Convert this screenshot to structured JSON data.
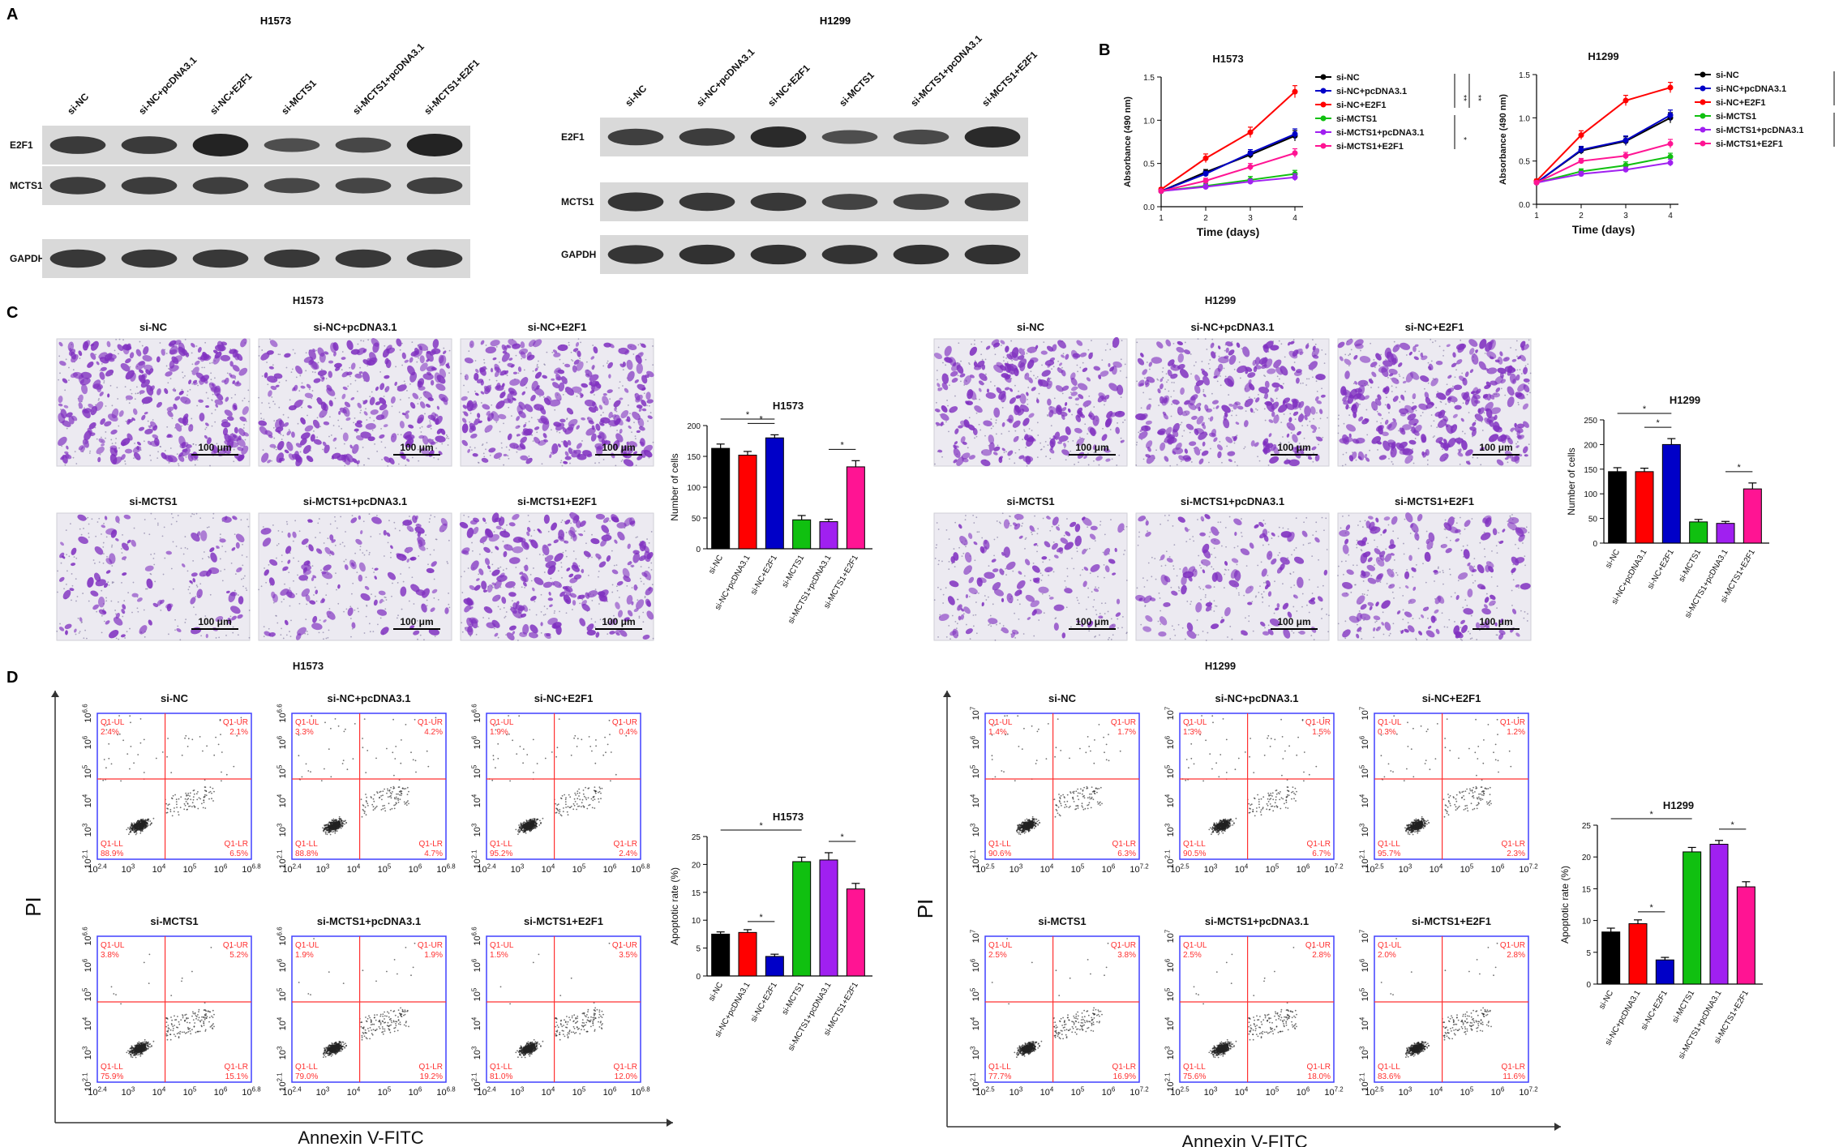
{
  "panels": {
    "A": {
      "letter": "A",
      "blots": [
        {
          "cell": "H1573",
          "lanes": [
            "si-NC",
            "si-NC+pcDNA3.1",
            "si-NC+E2F1",
            "si-MCTS1",
            "si-MCTS1+pcDNA3.1",
            "si-MCTS1+E2F1"
          ],
          "proteins": [
            "E2F1",
            "MCTS1",
            "GAPDH"
          ],
          "intensity": [
            [
              0.62,
              0.62,
              0.95,
              0.35,
              0.45,
              0.95
            ],
            [
              0.6,
              0.6,
              0.58,
              0.45,
              0.48,
              0.55
            ],
            [
              0.65,
              0.65,
              0.65,
              0.65,
              0.65,
              0.65
            ]
          ]
        },
        {
          "cell": "H1299",
          "lanes": [
            "si-NC",
            "si-NC+pcDNA3.1",
            "si-NC+E2F1",
            "si-MCTS1",
            "si-MCTS1+pcDNA3.1",
            "si-MCTS1+E2F1"
          ],
          "proteins": [
            "E2F1",
            "MCTS1",
            "GAPDH"
          ],
          "intensity": [
            [
              0.55,
              0.6,
              0.85,
              0.35,
              0.42,
              0.85
            ],
            [
              0.7,
              0.65,
              0.65,
              0.5,
              0.5,
              0.6
            ],
            [
              0.7,
              0.75,
              0.75,
              0.72,
              0.75,
              0.75
            ]
          ]
        }
      ]
    },
    "B": {
      "letter": "B"
    },
    "C": {
      "letter": "C",
      "scale_bar": "100 μm",
      "groups": [
        {
          "cell": "H1573",
          "labels": [
            "si-NC",
            "si-NC+pcDNA3.1",
            "si-NC+E2F1",
            "si-MCTS1",
            "si-MCTS1+pcDNA3.1",
            "si-MCTS1+E2F1"
          ],
          "density": [
            0.9,
            0.8,
            0.95,
            0.25,
            0.3,
            0.7
          ]
        },
        {
          "cell": "H1299",
          "labels": [
            "si-NC",
            "si-NC+pcDNA3.1",
            "si-NC+E2F1",
            "si-MCTS1",
            "si-MCTS1+pcDNA3.1",
            "si-MCTS1+E2F1"
          ],
          "density": [
            0.75,
            0.8,
            0.95,
            0.3,
            0.25,
            0.45
          ]
        }
      ]
    },
    "D": {
      "letter": "D",
      "ylabel": "PI",
      "xlabel": "Annexin V-FITC",
      "quadrant_names": [
        "Q1-UL",
        "Q1-UR",
        "Q1-LL",
        "Q1-LR"
      ],
      "groups": [
        {
          "cell": "H1573",
          "labels": [
            "si-NC",
            "si-NC+pcDNA3.1",
            "si-NC+E2F1",
            "si-MCTS1",
            "si-MCTS1+pcDNA3.1",
            "si-MCTS1+E2F1"
          ],
          "y_ticks": [
            "10^{2.1}",
            "10^3",
            "10^4",
            "10^5",
            "10^6",
            "10^{6.6}"
          ],
          "x_ticks": [
            "10^{2.4}",
            "10^3",
            "10^4",
            "10^5",
            "10^6",
            "10^{6.8}"
          ],
          "quadrants": [
            [
              "2.4%",
              "2.1%",
              "88.9%",
              "6.5%"
            ],
            [
              "3.3%",
              "4.2%",
              "88.8%",
              "4.7%"
            ],
            [
              "1.9%",
              "0.4%",
              "95.2%",
              "2.4%"
            ],
            [
              "3.8%",
              "5.2%",
              "75.9%",
              "15.1%"
            ],
            [
              "1.9%",
              "1.9%",
              "79.0%",
              "19.2%"
            ],
            [
              "1.5%",
              "3.5%",
              "81.0%",
              "12.0%"
            ]
          ]
        },
        {
          "cell": "H1299",
          "labels": [
            "si-NC",
            "si-NC+pcDNA3.1",
            "si-NC+E2F1",
            "si-MCTS1",
            "si-MCTS1+pcDNA3.1",
            "si-MCTS1+E2F1"
          ],
          "y_ticks": [
            "10^{2.1}",
            "10^3",
            "10^4",
            "10^5",
            "10^6",
            "10^7"
          ],
          "x_ticks": [
            "10^{2.5}",
            "10^3",
            "10^4",
            "10^5",
            "10^6",
            "10^{7.2}"
          ],
          "quadrants": [
            [
              "1.4%",
              "1.7%",
              "90.6%",
              "6.3%"
            ],
            [
              "1.3%",
              "1.5%",
              "90.5%",
              "6.7%"
            ],
            [
              "0.3%",
              "1.2%",
              "95.7%",
              "2.3%"
            ],
            [
              "2.5%",
              "3.8%",
              "77.7%",
              "16.9%"
            ],
            [
              "2.5%",
              "2.8%",
              "75.6%",
              "18.0%"
            ],
            [
              "2.0%",
              "2.8%",
              "83.6%",
              "11.6%"
            ]
          ]
        }
      ]
    }
  },
  "colors": {
    "black": "#000000",
    "red": "#ff0000",
    "blue": "#0000c8",
    "green": "#10c010",
    "purple": "#a020f0",
    "pink": "#ff1493",
    "gate": "#ff3030",
    "axis": "#4040ff",
    "crystal": "#8030c0"
  },
  "chart_data": [
    {
      "type": "line",
      "title": "H1573",
      "xlabel": "Time (days)",
      "ylabel": "Absorbance (490 nm)",
      "x": [
        1,
        2,
        3,
        4
      ],
      "xlim": [
        1,
        4
      ],
      "ylim": [
        0,
        1.5
      ],
      "y_ticks": [
        0.0,
        0.5,
        1.0,
        1.5
      ],
      "series": [
        {
          "name": "si-NC",
          "color": "#000000",
          "values": [
            0.18,
            0.4,
            0.6,
            0.82
          ],
          "err": [
            0.02,
            0.03,
            0.04,
            0.06
          ]
        },
        {
          "name": "si-NC+pcDNA3.1",
          "color": "#0000c8",
          "values": [
            0.18,
            0.38,
            0.62,
            0.84
          ],
          "err": [
            0.02,
            0.03,
            0.04,
            0.06
          ]
        },
        {
          "name": "si-NC+E2F1",
          "color": "#ff0000",
          "values": [
            0.2,
            0.56,
            0.86,
            1.33
          ],
          "err": [
            0.02,
            0.05,
            0.06,
            0.07
          ]
        },
        {
          "name": "si-MCTS1",
          "color": "#10c010",
          "values": [
            0.18,
            0.24,
            0.31,
            0.38
          ],
          "err": [
            0.02,
            0.03,
            0.04,
            0.04
          ]
        },
        {
          "name": "si-MCTS1+pcDNA3.1",
          "color": "#a020f0",
          "values": [
            0.18,
            0.23,
            0.29,
            0.34
          ],
          "err": [
            0.02,
            0.03,
            0.03,
            0.04
          ]
        },
        {
          "name": "si-MCTS1+E2F1",
          "color": "#ff1493",
          "values": [
            0.18,
            0.3,
            0.46,
            0.62
          ],
          "err": [
            0.02,
            0.03,
            0.04,
            0.05
          ]
        }
      ],
      "brackets": [
        {
          "from": 0,
          "to": 2,
          "label": "**"
        },
        {
          "from": 0,
          "to": 2,
          "label": "**"
        },
        {
          "from": 3,
          "to": 5,
          "label": "*"
        }
      ]
    },
    {
      "type": "line",
      "title": "H1299",
      "xlabel": "Time (days)",
      "ylabel": "Absorbance (490 nm)",
      "x": [
        1,
        2,
        3,
        4
      ],
      "xlim": [
        1,
        4
      ],
      "ylim": [
        0,
        1.5
      ],
      "y_ticks": [
        0.0,
        0.5,
        1.0,
        1.5
      ],
      "series": [
        {
          "name": "si-NC",
          "color": "#000000",
          "values": [
            0.25,
            0.62,
            0.73,
            1.0
          ],
          "err": [
            0.02,
            0.04,
            0.05,
            0.06
          ]
        },
        {
          "name": "si-NC+pcDNA3.1",
          "color": "#0000c8",
          "values": [
            0.25,
            0.63,
            0.74,
            1.03
          ],
          "err": [
            0.02,
            0.04,
            0.05,
            0.06
          ]
        },
        {
          "name": "si-NC+E2F1",
          "color": "#ff0000",
          "values": [
            0.27,
            0.8,
            1.2,
            1.35
          ],
          "err": [
            0.02,
            0.05,
            0.06,
            0.06
          ]
        },
        {
          "name": "si-MCTS1",
          "color": "#10c010",
          "values": [
            0.25,
            0.38,
            0.45,
            0.55
          ],
          "err": [
            0.02,
            0.03,
            0.04,
            0.04
          ]
        },
        {
          "name": "si-MCTS1+pcDNA3.1",
          "color": "#a020f0",
          "values": [
            0.25,
            0.35,
            0.4,
            0.48
          ],
          "err": [
            0.02,
            0.03,
            0.03,
            0.04
          ]
        },
        {
          "name": "si-MCTS1+E2F1",
          "color": "#ff1493",
          "values": [
            0.25,
            0.5,
            0.56,
            0.7
          ],
          "err": [
            0.02,
            0.03,
            0.04,
            0.05
          ]
        }
      ],
      "brackets": [
        {
          "from": 0,
          "to": 2,
          "label": "**"
        },
        {
          "from": 0,
          "to": 2,
          "label": "**"
        },
        {
          "from": 3,
          "to": 5,
          "label": "*"
        }
      ]
    },
    {
      "type": "bar",
      "title": "H1573",
      "ylabel": "Number of cells",
      "ylim": [
        0,
        200
      ],
      "y_ticks": [
        0,
        50,
        100,
        150,
        200
      ],
      "categories": [
        "si-NC",
        "si-NC+pcDNA3.1",
        "si-NC+E2F1",
        "si-MCTS1",
        "si-MCTS1+pcDNA3.1",
        "si-MCTS1+E2F1"
      ],
      "values": [
        163,
        152,
        180,
        47,
        44,
        133
      ],
      "err": [
        7,
        6,
        5,
        7,
        4,
        10
      ],
      "colors": [
        "#000000",
        "#ff0000",
        "#0000c8",
        "#10c010",
        "#a020f0",
        "#ff1493"
      ],
      "brackets": [
        {
          "from": 0,
          "to": 2,
          "label": "*"
        },
        {
          "from": 1,
          "to": 2,
          "label": "*"
        },
        {
          "from": 4,
          "to": 5,
          "label": "*"
        }
      ]
    },
    {
      "type": "bar",
      "title": "H1299",
      "ylabel": "Number of cells",
      "ylim": [
        0,
        250
      ],
      "y_ticks": [
        0,
        50,
        100,
        150,
        200,
        250
      ],
      "categories": [
        "si-NC",
        "si-NC+pcDNA3.1",
        "si-NC+E2F1",
        "si-MCTS1",
        "si-MCTS1+pcDNA3.1",
        "si-MCTS1+E2F1"
      ],
      "values": [
        145,
        145,
        200,
        43,
        40,
        110
      ],
      "err": [
        8,
        7,
        12,
        5,
        4,
        12
      ],
      "colors": [
        "#000000",
        "#ff0000",
        "#0000c8",
        "#10c010",
        "#a020f0",
        "#ff1493"
      ],
      "brackets": [
        {
          "from": 0,
          "to": 2,
          "label": "*"
        },
        {
          "from": 1,
          "to": 2,
          "label": "*"
        },
        {
          "from": 4,
          "to": 5,
          "label": "*"
        }
      ]
    },
    {
      "type": "bar",
      "title": "H1573",
      "ylabel": "Apoptotic rate (%)",
      "ylim": [
        0,
        25
      ],
      "y_ticks": [
        0,
        5,
        10,
        15,
        20,
        25
      ],
      "categories": [
        "si-NC",
        "si-NC+pcDNA3.1",
        "si-NC+E2F1",
        "si-MCTS1",
        "si-MCTS1+pcDNA3.1",
        "si-MCTS1+E2F1"
      ],
      "values": [
        7.5,
        7.8,
        3.5,
        20.5,
        20.8,
        15.6
      ],
      "err": [
        0.4,
        0.5,
        0.4,
        0.8,
        1.3,
        1.0
      ],
      "colors": [
        "#000000",
        "#ff0000",
        "#0000c8",
        "#10c010",
        "#a020f0",
        "#ff1493"
      ],
      "brackets": [
        {
          "from": 0,
          "to": 3,
          "label": "*"
        },
        {
          "from": 1,
          "to": 2,
          "label": "*"
        },
        {
          "from": 4,
          "to": 5,
          "label": "*"
        }
      ]
    },
    {
      "type": "bar",
      "title": "H1299",
      "ylabel": "Apoptotic rate (%)",
      "ylim": [
        0,
        25
      ],
      "y_ticks": [
        0,
        5,
        10,
        15,
        20,
        25
      ],
      "categories": [
        "si-NC",
        "si-NC+pcDNA3.1",
        "si-NC+E2F1",
        "si-MCTS1",
        "si-MCTS1+pcDNA3.1",
        "si-MCTS1+E2F1"
      ],
      "values": [
        8.2,
        9.5,
        3.8,
        20.8,
        22.0,
        15.3
      ],
      "err": [
        0.6,
        0.6,
        0.4,
        0.7,
        0.6,
        0.8
      ],
      "colors": [
        "#000000",
        "#ff0000",
        "#0000c8",
        "#10c010",
        "#a020f0",
        "#ff1493"
      ],
      "brackets": [
        {
          "from": 0,
          "to": 3,
          "label": "*"
        },
        {
          "from": 1,
          "to": 2,
          "label": "*"
        },
        {
          "from": 4,
          "to": 5,
          "label": "*"
        }
      ]
    }
  ]
}
